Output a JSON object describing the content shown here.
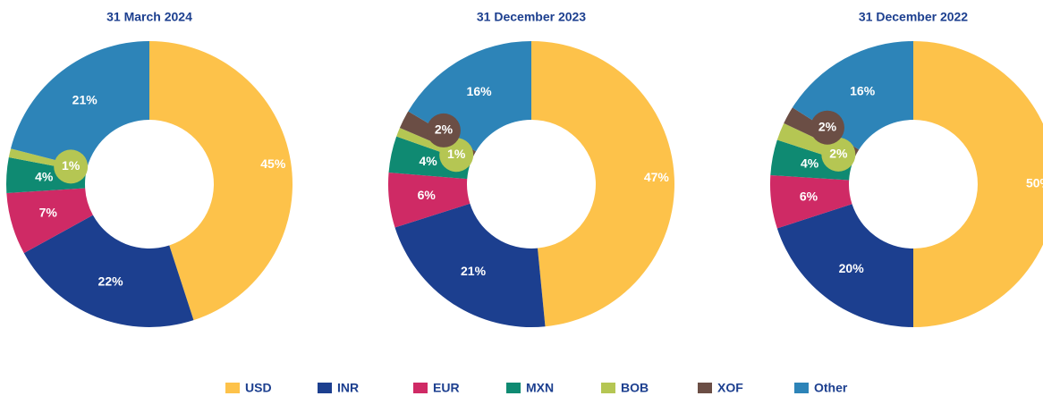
{
  "chart_data": [
    {
      "type": "pie",
      "title": "31 March 2024",
      "categories": [
        "USD",
        "INR",
        "EUR",
        "MXN",
        "BOB",
        "Other"
      ],
      "values": [
        45,
        22,
        7,
        4,
        1,
        21
      ],
      "value_labels": [
        "45%",
        "22%",
        "7%",
        "4%",
        "1%",
        "21%"
      ]
    },
    {
      "type": "pie",
      "title": "31 December 2023",
      "categories": [
        "USD",
        "INR",
        "EUR",
        "MXN",
        "BOB",
        "XOF",
        "Other"
      ],
      "values": [
        47,
        21,
        6,
        4,
        1,
        2,
        16
      ],
      "value_labels": [
        "47%",
        "21%",
        "6%",
        "4%",
        "1%",
        "2%",
        "16%"
      ]
    },
    {
      "type": "pie",
      "title": "31 December 2022",
      "categories": [
        "USD",
        "INR",
        "EUR",
        "MXN",
        "BOB",
        "XOF",
        "Other"
      ],
      "values": [
        50,
        20,
        6,
        4,
        2,
        2,
        16
      ],
      "value_labels": [
        "50%",
        "20%",
        "6%",
        "4%",
        "2%",
        "2%",
        "16%"
      ]
    }
  ],
  "legend": [
    {
      "name": "USD",
      "color": "#fdc24a"
    },
    {
      "name": "INR",
      "color": "#1c3f8f"
    },
    {
      "name": "EUR",
      "color": "#cf2a65"
    },
    {
      "name": "MXN",
      "color": "#0f8a72"
    },
    {
      "name": "BOB",
      "color": "#b5c653"
    },
    {
      "name": "XOF",
      "color": "#6b4e45"
    },
    {
      "name": "Other",
      "color": "#2d84b8"
    }
  ]
}
